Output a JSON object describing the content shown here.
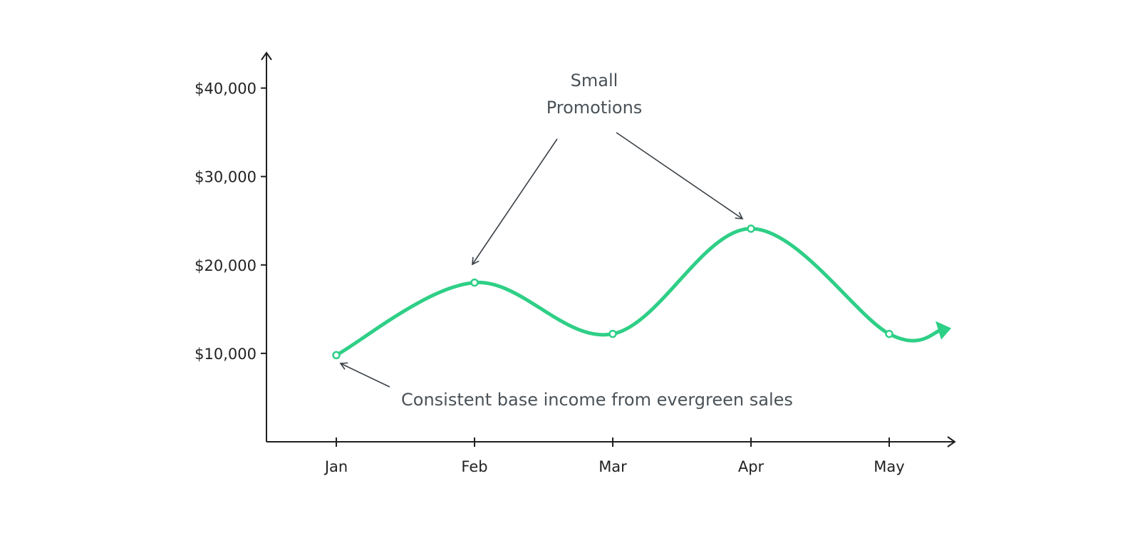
{
  "chart_data": {
    "type": "line",
    "categories": [
      "Jan",
      "Feb",
      "Mar",
      "Apr",
      "May"
    ],
    "series": [
      {
        "values": [
          9800,
          18000,
          12200,
          24100,
          12200
        ]
      }
    ],
    "y_ticks": [
      10000,
      20000,
      30000,
      40000
    ],
    "y_tick_labels": [
      "$10,000",
      "$20,000",
      "$30,000",
      "$40,000"
    ],
    "ylim": [
      0,
      44500
    ],
    "title": "",
    "xlabel": "",
    "ylabel": "",
    "grid": false,
    "legend": "none",
    "trend_arrow": "continues past May",
    "annotations": [
      {
        "text_lines": [
          "Small",
          "Promotions"
        ],
        "points_to": [
          "Feb",
          "Apr"
        ]
      },
      {
        "text_lines": [
          "Consistent base income from evergreen sales"
        ],
        "points_to": [
          "Jan"
        ]
      }
    ],
    "colors": {
      "line": "#2ecf86",
      "axis": "#1f1f1f",
      "annotation": "#4a5258"
    }
  }
}
